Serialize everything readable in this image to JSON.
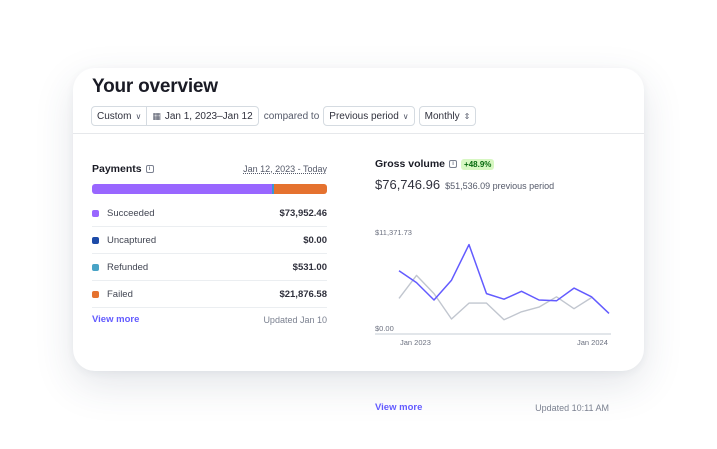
{
  "title": "Your overview",
  "filters": {
    "range_type": "Custom",
    "date_range": "Jan 1, 2023–Jan 12",
    "compared_label": "compared to",
    "comparison": "Previous period",
    "interval": "Monthly"
  },
  "payments": {
    "title": "Payments",
    "date_range": "Jan 12, 2023 - Today",
    "bar": [
      {
        "name": "Succeeded",
        "fraction": 0.7588,
        "color": "#9966ff"
      },
      {
        "name": "Uncaptured",
        "fraction": 0.0,
        "color": "#0055bc"
      },
      {
        "name": "Refunded",
        "fraction": 0.0055,
        "color": "#3a97d4"
      },
      {
        "name": "Failed",
        "fraction": 0.2246,
        "color": "#e5722f"
      }
    ],
    "rows": [
      {
        "label": "Succeeded",
        "value": "$73,952.46",
        "color": "#9966ff"
      },
      {
        "label": "Uncaptured",
        "value": "$0.00",
        "color": "#1d4ba8"
      },
      {
        "label": "Refunded",
        "value": "$531.00",
        "color": "#48a3c6"
      },
      {
        "label": "Failed",
        "value": "$21,876.58",
        "color": "#e5722f"
      }
    ],
    "view_more": "View more",
    "updated": "Updated Jan 10"
  },
  "gross": {
    "title": "Gross volume",
    "badge": "+48.9%",
    "amount": "$76,746.96",
    "previous": "$51,536.09 previous period",
    "view_more": "View more",
    "updated": "Updated 10:11 AM"
  },
  "chart_data": {
    "type": "line",
    "x": [
      "Jan 2023",
      "Feb 2023",
      "Mar 2023",
      "Apr 2023",
      "May 2023",
      "Jun 2023",
      "Jul 2023",
      "Aug 2023",
      "Sep 2023",
      "Oct 2023",
      "Nov 2023",
      "Dec 2023",
      "Jan 2024"
    ],
    "x_tick_labels": [
      "Jan 2023",
      "Jan 2024"
    ],
    "y_tick_labels": [
      "$11,371.73",
      "$0.00"
    ],
    "ylim": [
      0,
      11371.73
    ],
    "series": [
      {
        "values": [
          8000,
          6500,
          4300,
          6800,
          11300,
          5100,
          4400,
          5400,
          4300,
          4200,
          5800,
          4700,
          2600
        ],
        "color": "#635bff"
      },
      {
        "values": [
          4500,
          7400,
          5100,
          1900,
          3900,
          3900,
          1800,
          2800,
          3400,
          4700,
          3200,
          4600,
          null
        ],
        "color": "#c1c6cf"
      }
    ],
    "grid": false,
    "legend": "none"
  }
}
